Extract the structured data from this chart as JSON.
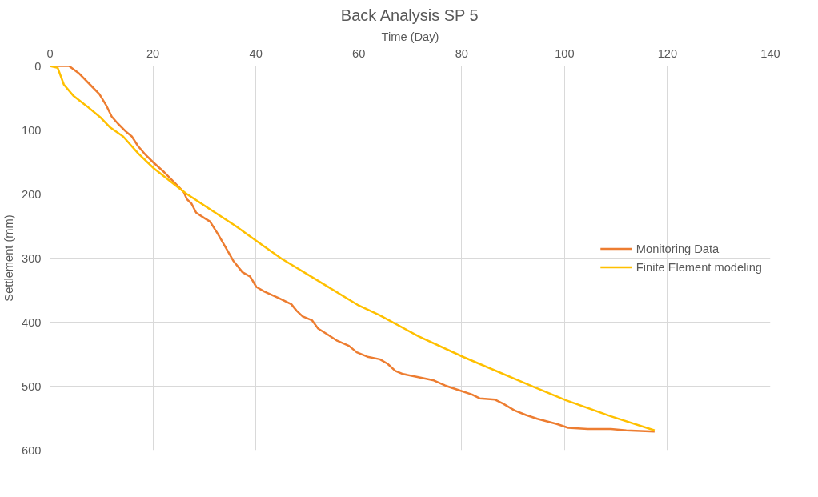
{
  "chart_data": {
    "type": "line",
    "title": "Back Analysis SP 5",
    "xlabel": "Time (Day)",
    "ylabel": "Settlement (mm)",
    "xlim": [
      0,
      140
    ],
    "xticks": [
      0,
      20,
      40,
      60,
      80,
      100,
      120,
      140
    ],
    "ylim": [
      600,
      0
    ],
    "yticks": [
      0,
      100,
      200,
      300,
      400,
      500,
      600
    ],
    "grid": true,
    "legend": "right",
    "marker": "none",
    "line_style": "solid",
    "series": [
      {
        "name": "Monitoring Data",
        "color": "#ed7d31",
        "x": [
          0,
          3.7,
          5.7,
          7.9,
          9.6,
          10.9,
          12,
          13.2,
          14.7,
          15.9,
          17.1,
          18.6,
          20,
          22.2,
          24.3,
          26,
          26.6,
          27.5,
          28.4,
          29.9,
          31.1,
          32.6,
          34.4,
          35.6,
          37.4,
          38.9,
          40.1,
          41.6,
          44.6,
          46.9,
          47.9,
          49.1,
          50.9,
          52.1,
          53.9,
          55.8,
          58.1,
          59.6,
          61.7,
          64.1,
          65.6,
          67.1,
          68.6,
          71.6,
          74.6,
          76.8,
          79,
          82,
          83.5,
          86.5,
          88,
          90.3,
          92.5,
          94.7,
          98.5,
          100.7,
          104.5,
          109,
          112,
          117.5
        ],
        "values": [
          0,
          0,
          12,
          30,
          44,
          61,
          79,
          90,
          102,
          110,
          125,
          139,
          150,
          166,
          183,
          197,
          208,
          215,
          229,
          237,
          243,
          262,
          287,
          304,
          322,
          329,
          345,
          352,
          363,
          372,
          382,
          391,
          397,
          410,
          419,
          429,
          437,
          447,
          454,
          458,
          465,
          476,
          481,
          486,
          491,
          499,
          505,
          513,
          519,
          521,
          527,
          538,
          545,
          551,
          559,
          565,
          567,
          567,
          569,
          571
        ]
      },
      {
        "name": "Finite Element modeling",
        "color": "#ffc000",
        "x": [
          0,
          1.5,
          2.7,
          4.6,
          7.2,
          9.9,
          11.7,
          14.2,
          17.2,
          20.2,
          25.1,
          26.6,
          36.1,
          40.1,
          45,
          51.6,
          60,
          64,
          71.6,
          80.5,
          94,
          100.3,
          109,
          117.5
        ],
        "values": [
          0,
          3,
          29,
          47,
          63,
          81,
          96,
          110,
          137,
          160,
          191,
          200,
          250,
          273,
          301,
          333,
          374,
          389,
          422,
          455,
          501,
          522,
          547,
          569
        ]
      }
    ]
  }
}
